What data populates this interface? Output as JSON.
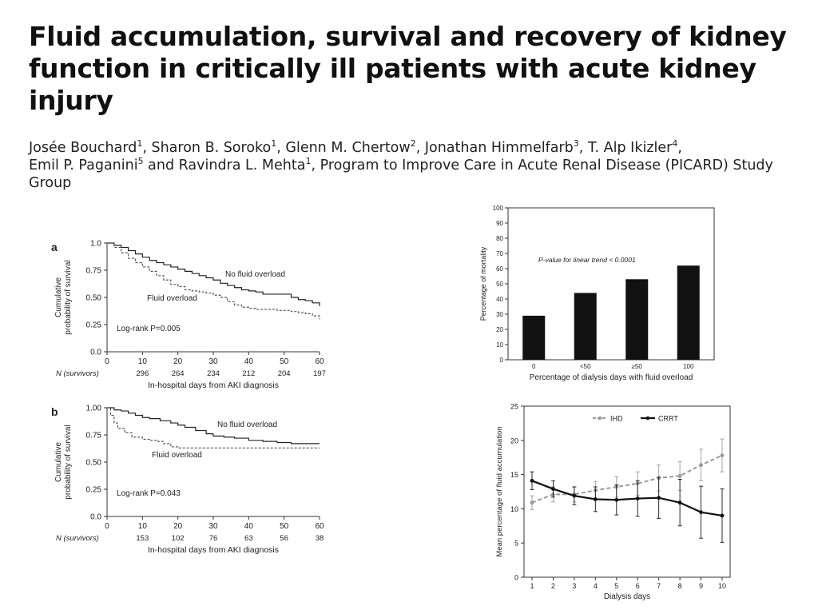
{
  "title": "Fluid accumulation, survival and recovery of kidney function in critically ill patients with acute kidney injury",
  "authors": [
    {
      "name": "Josée Bouchard",
      "sup": "1",
      "sep": ", "
    },
    {
      "name": "Sharon B. Soroko",
      "sup": "1",
      "sep": ", "
    },
    {
      "name": "Glenn M. Chertow",
      "sup": "2",
      "sep": ", "
    },
    {
      "name": "Jonathan Himmelfarb",
      "sup": "3",
      "sep": ", "
    },
    {
      "name": "T. Alp Ikizler",
      "sup": "4",
      "sep": ", "
    },
    {
      "name": "Emil P. Paganini",
      "sup": "5",
      "sep": " and "
    },
    {
      "name": "Ravindra L. Mehta",
      "sup": "1",
      "sep": ", "
    }
  ],
  "group": "Program to Improve Care in Acute Renal Disease (PICARD) Study Group",
  "chart_data": [
    {
      "type": "line",
      "panel": "a",
      "ylabel": "Cumulative probability of survival",
      "xlabel": "In-hospital days from AKI diagnosis",
      "xlim": [
        0,
        60
      ],
      "ylim": [
        0.0,
        1.0
      ],
      "xticks": [
        0,
        10,
        20,
        30,
        40,
        50,
        60
      ],
      "yticks": [
        "0.0",
        "0.25",
        "0.50",
        "0.75",
        "1.0"
      ],
      "ytick_values": [
        0,
        0.25,
        0.5,
        0.75,
        1.0
      ],
      "n_label": "N (survivors)",
      "n_values": [
        "296",
        "264",
        "234",
        "212",
        "204",
        "197"
      ],
      "n_x": [
        10,
        20,
        30,
        40,
        50,
        60
      ],
      "annotation": "Log-rank P=0.005",
      "series": [
        {
          "name": "No fluid overload",
          "style": "solid",
          "x": [
            0,
            2,
            4,
            6,
            8,
            10,
            12,
            14,
            16,
            18,
            20,
            22,
            24,
            26,
            28,
            30,
            32,
            34,
            36,
            38,
            40,
            42,
            44,
            46,
            48,
            50,
            52,
            54,
            56,
            58,
            60
          ],
          "y": [
            1.0,
            0.98,
            0.96,
            0.93,
            0.9,
            0.87,
            0.84,
            0.82,
            0.8,
            0.78,
            0.76,
            0.74,
            0.72,
            0.7,
            0.68,
            0.66,
            0.63,
            0.61,
            0.59,
            0.57,
            0.56,
            0.55,
            0.53,
            0.53,
            0.53,
            0.53,
            0.5,
            0.48,
            0.47,
            0.45,
            0.42
          ]
        },
        {
          "name": "Fluid overload",
          "style": "dashed",
          "x": [
            0,
            2,
            4,
            6,
            8,
            10,
            12,
            14,
            16,
            18,
            20,
            22,
            24,
            26,
            28,
            30,
            32,
            34,
            36,
            38,
            40,
            42,
            44,
            46,
            48,
            50,
            52,
            54,
            56,
            58,
            60
          ],
          "y": [
            1.0,
            0.96,
            0.91,
            0.86,
            0.82,
            0.78,
            0.74,
            0.7,
            0.66,
            0.62,
            0.6,
            0.57,
            0.56,
            0.55,
            0.54,
            0.52,
            0.5,
            0.46,
            0.43,
            0.41,
            0.4,
            0.39,
            0.39,
            0.39,
            0.38,
            0.38,
            0.37,
            0.36,
            0.35,
            0.33,
            0.3
          ]
        }
      ]
    },
    {
      "type": "line",
      "panel": "b",
      "ylabel": "Cumulative probability of survival",
      "xlabel": "In-hospital days from AKI diagnosis",
      "xlim": [
        0,
        60
      ],
      "ylim": [
        0.0,
        1.0
      ],
      "xticks": [
        0,
        10,
        20,
        30,
        40,
        50,
        60
      ],
      "yticks": [
        "0.0",
        "0.25",
        "0.50",
        "0.75",
        "1.00"
      ],
      "ytick_values": [
        0,
        0.25,
        0.5,
        0.75,
        1.0
      ],
      "n_label": "N (survivors)",
      "n_values": [
        "153",
        "102",
        "76",
        "63",
        "56",
        "38"
      ],
      "n_x": [
        10,
        20,
        30,
        40,
        50,
        60
      ],
      "annotation": "Log-rank P=0.043",
      "series": [
        {
          "name": "No fluid overload",
          "style": "solid",
          "x": [
            0,
            2,
            4,
            6,
            8,
            10,
            12,
            15,
            18,
            20,
            22,
            25,
            28,
            30,
            33,
            36,
            40,
            44,
            48,
            50,
            52,
            60
          ],
          "y": [
            1.0,
            0.98,
            0.97,
            0.95,
            0.93,
            0.91,
            0.9,
            0.88,
            0.86,
            0.84,
            0.82,
            0.79,
            0.76,
            0.74,
            0.73,
            0.72,
            0.7,
            0.69,
            0.68,
            0.68,
            0.67,
            0.67
          ]
        },
        {
          "name": "Fluid overload",
          "style": "dashed",
          "x": [
            0,
            1,
            2,
            3,
            5,
            7,
            10,
            12,
            14,
            16,
            18,
            20,
            30,
            40,
            50,
            60
          ],
          "y": [
            1.0,
            0.93,
            0.86,
            0.81,
            0.77,
            0.73,
            0.71,
            0.7,
            0.69,
            0.67,
            0.64,
            0.63,
            0.63,
            0.63,
            0.63,
            0.63
          ]
        }
      ]
    },
    {
      "type": "bar",
      "ylabel": "Percentage of mortality",
      "xlabel": "Percentage of dialysis days with fluid overload",
      "ylim": [
        0,
        100
      ],
      "yticks": [
        0,
        10,
        20,
        30,
        40,
        50,
        60,
        70,
        80,
        90,
        100
      ],
      "categories": [
        "0",
        "<50",
        "≥50",
        "100"
      ],
      "values": [
        29,
        44,
        53,
        62
      ],
      "annotation": "P-value for linear trend < 0.0001"
    },
    {
      "type": "line",
      "ylabel": "Mean percentage of fluid accumulation",
      "xlabel": "Dialysis days",
      "xlim": [
        1,
        10
      ],
      "ylim": [
        0,
        25
      ],
      "xticks": [
        1,
        2,
        3,
        4,
        5,
        6,
        7,
        8,
        9,
        10
      ],
      "yticks": [
        0,
        5,
        10,
        15,
        20,
        25
      ],
      "legend_placement": "top-center",
      "series": [
        {
          "name": "IHD",
          "style": "dashed",
          "color": "#9a9a9a",
          "x": [
            1,
            2,
            3,
            4,
            5,
            6,
            7,
            8,
            9,
            10
          ],
          "y": [
            10.9,
            12.1,
            12.1,
            12.7,
            13.2,
            13.7,
            14.5,
            14.8,
            16.4,
            17.8
          ],
          "err": [
            1.0,
            1.1,
            1.1,
            1.3,
            1.5,
            1.7,
            1.9,
            2.1,
            2.3,
            2.4
          ]
        },
        {
          "name": "CRRT",
          "style": "solid",
          "color": "#111111",
          "x": [
            1,
            2,
            3,
            4,
            5,
            6,
            7,
            8,
            9,
            10
          ],
          "y": [
            14.1,
            12.9,
            11.9,
            11.4,
            11.3,
            11.5,
            11.6,
            10.9,
            9.5,
            9.0
          ],
          "err": [
            1.3,
            1.2,
            1.3,
            1.8,
            2.2,
            2.6,
            3.0,
            3.4,
            3.8,
            3.9
          ]
        }
      ]
    }
  ]
}
